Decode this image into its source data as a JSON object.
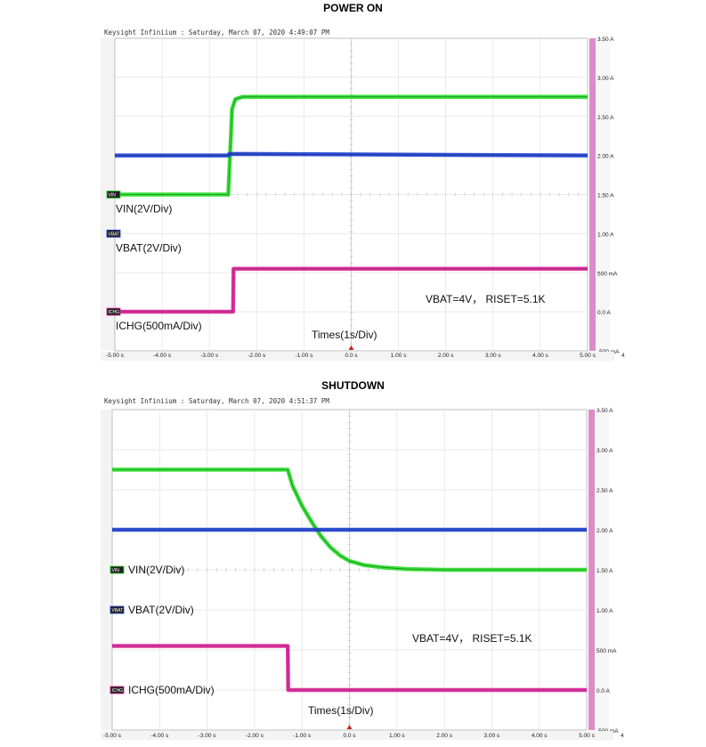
{
  "chart_data": [
    {
      "type": "line",
      "title": "POWER ON",
      "header": "Keysight Infiniium : Saturday, March 07, 2020 4:49:07 PM",
      "trigger_mark": "T",
      "x_label": "Times(1s/Div)",
      "x_ticks": [
        "-5.00 s",
        "-4.00 s",
        "-3.00 s",
        "-2.00 s",
        "-1.00 s",
        "0.0 s",
        "1.00 s",
        "2.00 s",
        "3.00 s",
        "4.00 s",
        "5.00 s"
      ],
      "y_ticks": [
        "3.50 A",
        "3.00 A",
        "2.50 A",
        "2.00 A",
        "1.50 A",
        "1.00 A",
        "500 mA",
        "0.0 A",
        "-500 mA"
      ],
      "xlim": [
        -5,
        5
      ],
      "ylim_div": [
        -0.5,
        3.5
      ],
      "corner_label": "4",
      "conditions": "VBAT=4V， RISET=5.1K",
      "series": [
        {
          "name": "VIN(2V/Div)",
          "tag": "VIN",
          "color": "#22dd22",
          "x": [
            -5,
            -2.6,
            -2.52,
            -2.45,
            -2.3,
            5
          ],
          "y": [
            1.5,
            1.5,
            2.6,
            2.72,
            2.75,
            2.75
          ],
          "marker_level": 1.5
        },
        {
          "name": "VBAT(2V/Div)",
          "tag": "VBAT",
          "color": "#1a3fd6",
          "x": [
            -5,
            -2.6,
            -2.58,
            5
          ],
          "y": [
            2.0,
            2.0,
            2.02,
            2.0
          ],
          "marker_level": 1.0
        },
        {
          "name": "ICHG(500mA/Div)",
          "tag": "ICHG",
          "color": "#e0209a",
          "x": [
            -5,
            -2.5,
            -2.49,
            5
          ],
          "y": [
            0.0,
            0.0,
            0.55,
            0.55
          ],
          "marker_level": 0.0
        }
      ]
    },
    {
      "type": "line",
      "title": "SHUTDOWN",
      "header": "Keysight Infiniium : Saturday, March 07, 2020 4:51:37 PM",
      "trigger_mark": "T",
      "x_label": "Times(1s/Div)",
      "x_ticks": [
        "-5.00 s",
        "-4.00 s",
        "-3.00 s",
        "-2.00 s",
        "-1.00 s",
        "0.0 s",
        "1.00 s",
        "2.00 s",
        "3.00 s",
        "4.00 s",
        "5.00 s"
      ],
      "y_ticks": [
        "3.50 A",
        "3.00 A",
        "2.50 A",
        "2.00 A",
        "1.50 A",
        "1.00 A",
        "500 mA",
        "0.0 A",
        "-500 mA"
      ],
      "xlim": [
        -5,
        5
      ],
      "ylim_div": [
        -0.5,
        3.5
      ],
      "corner_label": "4",
      "conditions": "VBAT=4V， RISET=5.1K",
      "series": [
        {
          "name": "VIN(2V/Div)",
          "tag": "VIN",
          "color": "#22dd22",
          "x": [
            -5,
            -1.3,
            -1.2,
            -1.0,
            -0.8,
            -0.6,
            -0.4,
            -0.2,
            0,
            0.3,
            0.7,
            1.2,
            2,
            5
          ],
          "y": [
            2.75,
            2.75,
            2.55,
            2.3,
            2.1,
            1.92,
            1.78,
            1.68,
            1.61,
            1.56,
            1.53,
            1.51,
            1.5,
            1.5
          ],
          "marker_level": 1.5
        },
        {
          "name": "VBAT(2V/Div)",
          "tag": "VBAT",
          "color": "#1a3fd6",
          "x": [
            -5,
            5
          ],
          "y": [
            2.0,
            2.0
          ],
          "marker_level": 1.0
        },
        {
          "name": "ICHG(500mA/Div)",
          "tag": "ICHG",
          "color": "#e0209a",
          "x": [
            -5,
            -1.3,
            -1.29,
            5
          ],
          "y": [
            0.55,
            0.55,
            0.0,
            0.0
          ],
          "marker_level": 0.0
        }
      ]
    }
  ]
}
